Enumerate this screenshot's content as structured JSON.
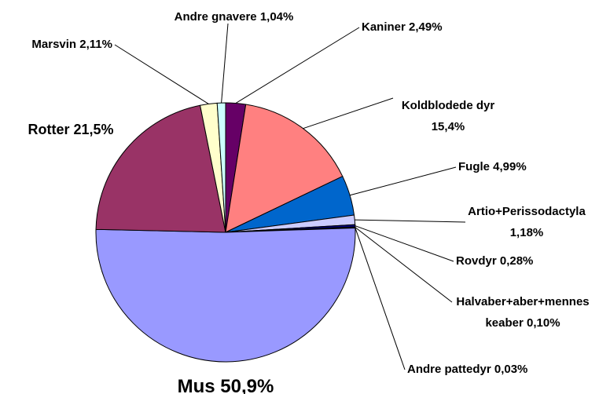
{
  "chart_data": {
    "type": "pie",
    "categories": [
      "Kaniner",
      "Koldblodede dyr",
      "Fugle",
      "Artio+Perissodactyla",
      "Rovdyr",
      "Halvaber+aber+menneskeaber",
      "Andre pattedyr",
      "Mus",
      "Rotter",
      "Marsvin",
      "Andre gnavere"
    ],
    "values": [
      2.49,
      15.4,
      4.99,
      1.18,
      0.28,
      0.1,
      0.03,
      50.9,
      21.5,
      2.11,
      1.04
    ],
    "value_labels": [
      "2,49%",
      "15,4%",
      "4,99%",
      "1,18%",
      "0,28%",
      "0,10%",
      "0,03%",
      "50,9%",
      "21,5%",
      "2,11%",
      "1,04%"
    ],
    "colors": [
      "#660066",
      "#FF8080",
      "#0066CC",
      "#CCCCFF",
      "#000080",
      "#FF00FF",
      "#FFFF00",
      "#9999FF",
      "#993366",
      "#FFFFCC",
      "#CCFFFF"
    ]
  }
}
